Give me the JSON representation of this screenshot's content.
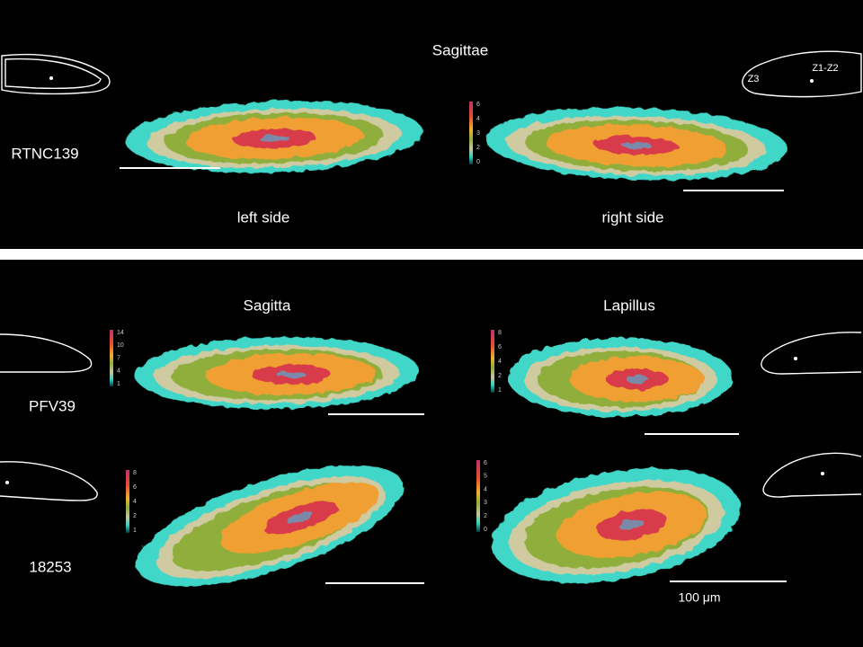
{
  "header": {
    "title": "Sagittae"
  },
  "top": {
    "specimen": "RTNC139",
    "left_label": "left side",
    "right_label": "right side",
    "zones": [
      "Z3",
      "Z1-Z2"
    ],
    "colorbar": [
      6,
      4,
      3,
      2,
      0
    ]
  },
  "bottom": {
    "columns": [
      "Sagitta",
      "Lapillus"
    ],
    "rows": [
      {
        "specimen": "PFV39",
        "colorbars": [
          [
            14,
            10,
            7,
            4,
            1
          ],
          [
            8,
            6,
            4,
            2,
            1
          ]
        ]
      },
      {
        "specimen": "18253",
        "colorbars": [
          [
            8,
            6,
            4,
            2,
            1
          ],
          [
            6,
            5,
            4,
            3,
            2,
            0
          ]
        ]
      }
    ]
  },
  "scale_label": "100 μm"
}
